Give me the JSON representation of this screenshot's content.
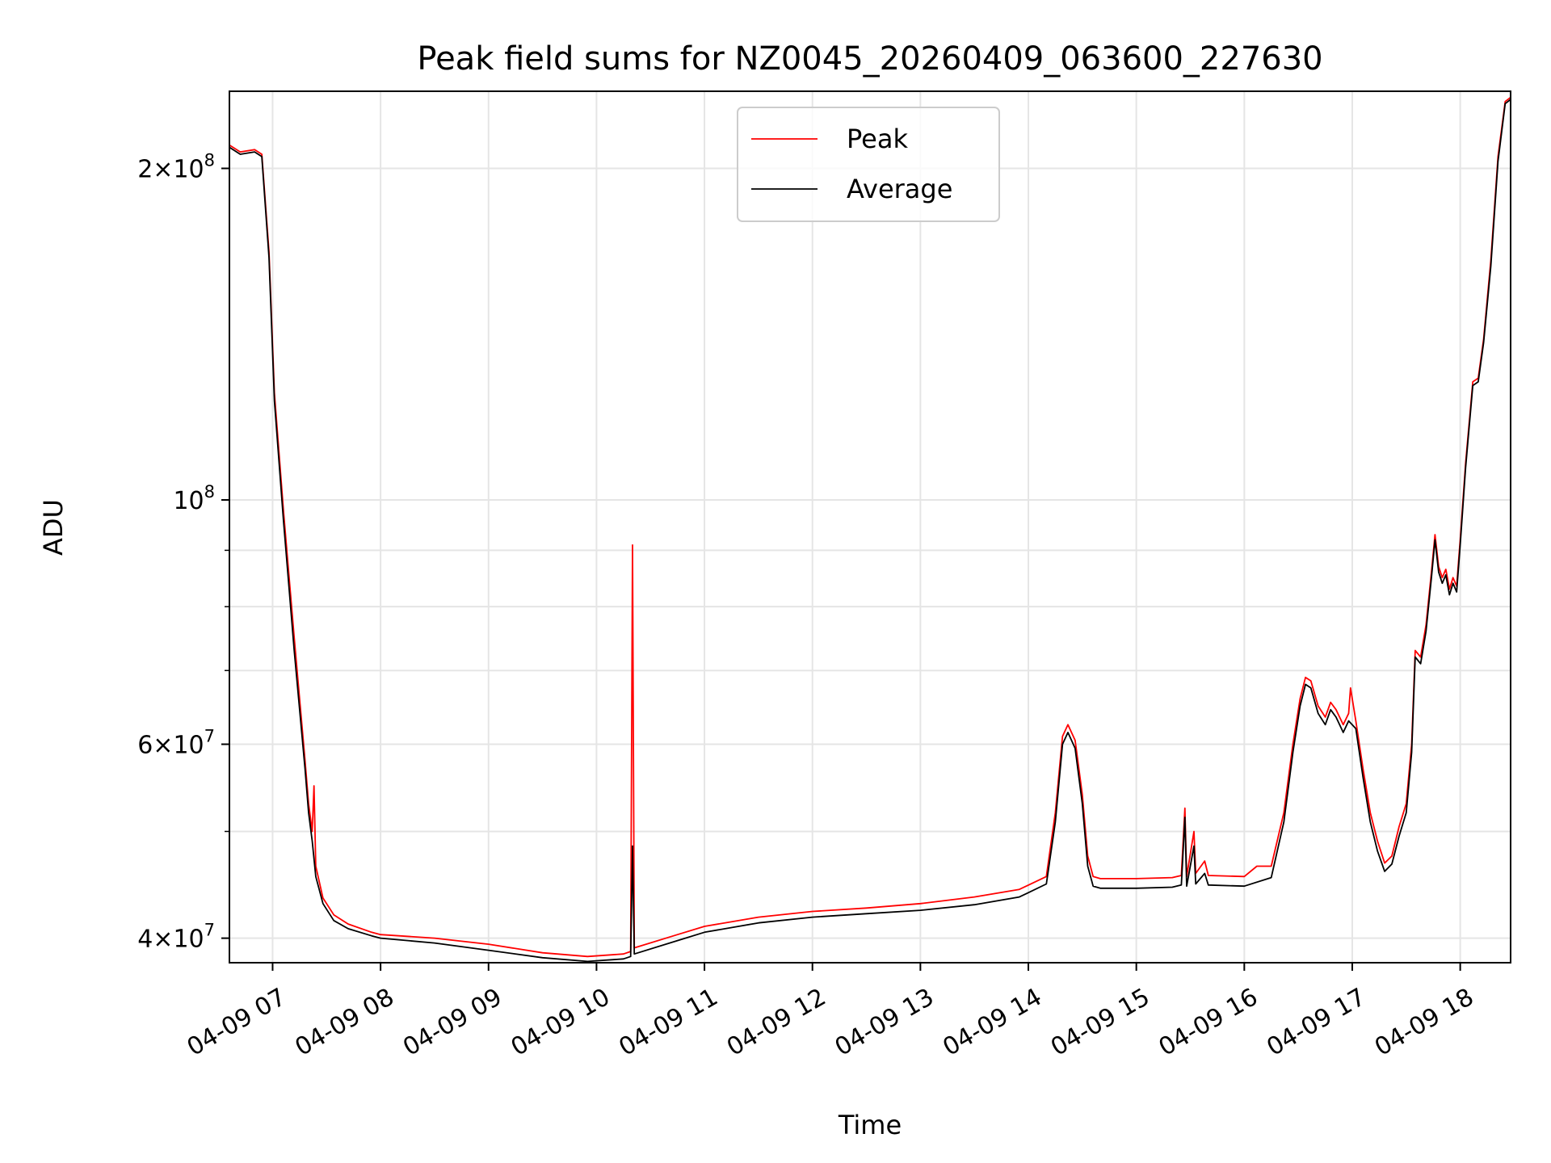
{
  "chart_data": {
    "type": "line",
    "title": "Peak field sums for NZ0045_20260409_063600_227630",
    "xlabel": "Time",
    "ylabel": "ADU",
    "yscale": "log",
    "ylim": [
      38000000,
      235000000
    ],
    "xlim": [
      "2026-04-09 06:36",
      "2026-04-09 18:28"
    ],
    "x_ticks": [
      "04-09 07",
      "04-09 08",
      "04-09 09",
      "04-09 10",
      "04-09 11",
      "04-09 12",
      "04-09 13",
      "04-09 14",
      "04-09 15",
      "04-09 16",
      "04-09 17",
      "04-09 18"
    ],
    "x_tick_rotation": 30,
    "y_major_ticks": [
      {
        "value": 40000000,
        "mantissa": "4",
        "exp": "7"
      },
      {
        "value": 60000000,
        "mantissa": "6",
        "exp": "7"
      },
      {
        "value": 100000000,
        "mantissa": "",
        "exp": "8"
      },
      {
        "value": 200000000,
        "mantissa": "2",
        "exp": "8"
      }
    ],
    "y_minor_ticks": [
      50000000,
      70000000,
      80000000,
      90000000
    ],
    "grid": true,
    "legend": "upper center",
    "series": [
      {
        "name": "Peak",
        "color": "#ff0000",
        "points": [
          [
            "2026-04-09 06:36",
            210000000
          ],
          [
            "2026-04-09 06:42",
            207000000
          ],
          [
            "2026-04-09 06:50",
            208000000
          ],
          [
            "2026-04-09 06:54",
            206000000
          ],
          [
            "2026-04-09 06:58",
            168000000
          ],
          [
            "2026-04-09 07:01",
            125000000
          ],
          [
            "2026-04-09 07:06",
            98000000
          ],
          [
            "2026-04-09 07:12",
            75000000
          ],
          [
            "2026-04-09 07:18",
            58000000
          ],
          [
            "2026-04-09 07:20",
            53000000
          ],
          [
            "2026-04-09 07:22",
            50000000
          ],
          [
            "2026-04-09 07:23",
            55000000
          ],
          [
            "2026-04-09 07:24",
            46500000
          ],
          [
            "2026-04-09 07:28",
            43500000
          ],
          [
            "2026-04-09 07:34",
            42000000
          ],
          [
            "2026-04-09 07:42",
            41200000
          ],
          [
            "2026-04-09 07:55",
            40500000
          ],
          [
            "2026-04-09 08:00",
            40300000
          ],
          [
            "2026-04-09 08:30",
            40000000
          ],
          [
            "2026-04-09 09:00",
            39500000
          ],
          [
            "2026-04-09 09:30",
            38800000
          ],
          [
            "2026-04-09 09:55",
            38500000
          ],
          [
            "2026-04-09 10:15",
            38700000
          ],
          [
            "2026-04-09 10:19",
            38900000
          ],
          [
            "2026-04-09 10:20",
            91000000
          ],
          [
            "2026-04-09 10:21",
            39200000
          ],
          [
            "2026-04-09 10:45",
            40300000
          ],
          [
            "2026-04-09 11:00",
            41000000
          ],
          [
            "2026-04-09 11:30",
            41800000
          ],
          [
            "2026-04-09 12:00",
            42300000
          ],
          [
            "2026-04-09 12:30",
            42600000
          ],
          [
            "2026-04-09 13:00",
            43000000
          ],
          [
            "2026-04-09 13:30",
            43600000
          ],
          [
            "2026-04-09 13:55",
            44300000
          ],
          [
            "2026-04-09 14:10",
            45500000
          ],
          [
            "2026-04-09 14:15",
            52000000
          ],
          [
            "2026-04-09 14:19",
            61000000
          ],
          [
            "2026-04-09 14:22",
            62500000
          ],
          [
            "2026-04-09 14:26",
            60500000
          ],
          [
            "2026-04-09 14:30",
            54000000
          ],
          [
            "2026-04-09 14:33",
            47500000
          ],
          [
            "2026-04-09 14:36",
            45500000
          ],
          [
            "2026-04-09 14:40",
            45300000
          ],
          [
            "2026-04-09 15:00",
            45300000
          ],
          [
            "2026-04-09 15:20",
            45400000
          ],
          [
            "2026-04-09 15:25",
            45600000
          ],
          [
            "2026-04-09 15:27",
            52500000
          ],
          [
            "2026-04-09 15:28",
            45500000
          ],
          [
            "2026-04-09 15:32",
            50000000
          ],
          [
            "2026-04-09 15:33",
            45800000
          ],
          [
            "2026-04-09 15:38",
            47000000
          ],
          [
            "2026-04-09 15:40",
            45600000
          ],
          [
            "2026-04-09 16:00",
            45500000
          ],
          [
            "2026-04-09 16:07",
            46500000
          ],
          [
            "2026-04-09 16:15",
            46500000
          ],
          [
            "2026-04-09 16:22",
            52000000
          ],
          [
            "2026-04-09 16:27",
            60000000
          ],
          [
            "2026-04-09 16:31",
            66000000
          ],
          [
            "2026-04-09 16:34",
            69000000
          ],
          [
            "2026-04-09 16:37",
            68500000
          ],
          [
            "2026-04-09 16:41",
            65000000
          ],
          [
            "2026-04-09 16:45",
            63500000
          ],
          [
            "2026-04-09 16:48",
            65500000
          ],
          [
            "2026-04-09 16:51",
            64500000
          ],
          [
            "2026-04-09 16:55",
            62500000
          ],
          [
            "2026-04-09 16:58",
            64000000
          ],
          [
            "2026-04-09 16:59",
            67500000
          ],
          [
            "2026-04-09 17:02",
            63000000
          ],
          [
            "2026-04-09 17:06",
            57000000
          ],
          [
            "2026-04-09 17:10",
            52000000
          ],
          [
            "2026-04-09 17:14",
            49000000
          ],
          [
            "2026-04-09 17:18",
            46800000
          ],
          [
            "2026-04-09 17:22",
            47500000
          ],
          [
            "2026-04-09 17:26",
            50500000
          ],
          [
            "2026-04-09 17:30",
            53000000
          ],
          [
            "2026-04-09 17:33",
            60000000
          ],
          [
            "2026-04-09 17:35",
            73000000
          ],
          [
            "2026-04-09 17:38",
            72000000
          ],
          [
            "2026-04-09 17:41",
            77000000
          ],
          [
            "2026-04-09 17:44",
            86000000
          ],
          [
            "2026-04-09 17:46",
            93000000
          ],
          [
            "2026-04-09 17:48",
            87000000
          ],
          [
            "2026-04-09 17:50",
            85000000
          ],
          [
            "2026-04-09 17:52",
            86500000
          ],
          [
            "2026-04-09 17:54",
            83000000
          ],
          [
            "2026-04-09 17:56",
            85000000
          ],
          [
            "2026-04-09 17:58",
            83500000
          ],
          [
            "2026-04-09 18:00",
            92000000
          ],
          [
            "2026-04-09 18:03",
            108000000
          ],
          [
            "2026-04-09 18:07",
            128000000
          ],
          [
            "2026-04-09 18:10",
            129000000
          ],
          [
            "2026-04-09 18:13",
            140000000
          ],
          [
            "2026-04-09 18:17",
            165000000
          ],
          [
            "2026-04-09 18:21",
            205000000
          ],
          [
            "2026-04-09 18:25",
            230000000
          ],
          [
            "2026-04-09 18:28",
            232000000
          ]
        ]
      },
      {
        "name": "Average",
        "color": "#000000",
        "points": [
          [
            "2026-04-09 06:36",
            209000000
          ],
          [
            "2026-04-09 06:42",
            206000000
          ],
          [
            "2026-04-09 06:50",
            207000000
          ],
          [
            "2026-04-09 06:54",
            205000000
          ],
          [
            "2026-04-09 06:58",
            166000000
          ],
          [
            "2026-04-09 07:01",
            123000000
          ],
          [
            "2026-04-09 07:06",
            96000000
          ],
          [
            "2026-04-09 07:12",
            73000000
          ],
          [
            "2026-04-09 07:18",
            57000000
          ],
          [
            "2026-04-09 07:20",
            52000000
          ],
          [
            "2026-04-09 07:22",
            49000000
          ],
          [
            "2026-04-09 07:24",
            45500000
          ],
          [
            "2026-04-09 07:28",
            43000000
          ],
          [
            "2026-04-09 07:34",
            41500000
          ],
          [
            "2026-04-09 07:42",
            40800000
          ],
          [
            "2026-04-09 07:55",
            40200000
          ],
          [
            "2026-04-09 08:00",
            40000000
          ],
          [
            "2026-04-09 08:30",
            39600000
          ],
          [
            "2026-04-09 09:00",
            39000000
          ],
          [
            "2026-04-09 09:30",
            38400000
          ],
          [
            "2026-04-09 09:55",
            38100000
          ],
          [
            "2026-04-09 10:15",
            38300000
          ],
          [
            "2026-04-09 10:19",
            38500000
          ],
          [
            "2026-04-09 10:20",
            48500000
          ],
          [
            "2026-04-09 10:21",
            38700000
          ],
          [
            "2026-04-09 10:45",
            39800000
          ],
          [
            "2026-04-09 11:00",
            40500000
          ],
          [
            "2026-04-09 11:30",
            41300000
          ],
          [
            "2026-04-09 12:00",
            41800000
          ],
          [
            "2026-04-09 12:30",
            42100000
          ],
          [
            "2026-04-09 13:00",
            42400000
          ],
          [
            "2026-04-09 13:30",
            42900000
          ],
          [
            "2026-04-09 13:55",
            43600000
          ],
          [
            "2026-04-09 14:10",
            44800000
          ],
          [
            "2026-04-09 14:15",
            51000000
          ],
          [
            "2026-04-09 14:19",
            60000000
          ],
          [
            "2026-04-09 14:22",
            61500000
          ],
          [
            "2026-04-09 14:26",
            59500000
          ],
          [
            "2026-04-09 14:30",
            53000000
          ],
          [
            "2026-04-09 14:33",
            46500000
          ],
          [
            "2026-04-09 14:36",
            44600000
          ],
          [
            "2026-04-09 14:40",
            44400000
          ],
          [
            "2026-04-09 15:00",
            44400000
          ],
          [
            "2026-04-09 15:20",
            44500000
          ],
          [
            "2026-04-09 15:25",
            44700000
          ],
          [
            "2026-04-09 15:27",
            51500000
          ],
          [
            "2026-04-09 15:28",
            44600000
          ],
          [
            "2026-04-09 15:32",
            48500000
          ],
          [
            "2026-04-09 15:33",
            44800000
          ],
          [
            "2026-04-09 15:38",
            45800000
          ],
          [
            "2026-04-09 15:40",
            44700000
          ],
          [
            "2026-04-09 16:00",
            44600000
          ],
          [
            "2026-04-09 16:15",
            45400000
          ],
          [
            "2026-04-09 16:22",
            51000000
          ],
          [
            "2026-04-09 16:27",
            59000000
          ],
          [
            "2026-04-09 16:31",
            65000000
          ],
          [
            "2026-04-09 16:34",
            68000000
          ],
          [
            "2026-04-09 16:37",
            67500000
          ],
          [
            "2026-04-09 16:41",
            64000000
          ],
          [
            "2026-04-09 16:45",
            62500000
          ],
          [
            "2026-04-09 16:48",
            64500000
          ],
          [
            "2026-04-09 16:51",
            63500000
          ],
          [
            "2026-04-09 16:55",
            61500000
          ],
          [
            "2026-04-09 16:58",
            63000000
          ],
          [
            "2026-04-09 17:02",
            62000000
          ],
          [
            "2026-04-09 17:06",
            56000000
          ],
          [
            "2026-04-09 17:10",
            51000000
          ],
          [
            "2026-04-09 17:14",
            48000000
          ],
          [
            "2026-04-09 17:18",
            46000000
          ],
          [
            "2026-04-09 17:22",
            46700000
          ],
          [
            "2026-04-09 17:26",
            49500000
          ],
          [
            "2026-04-09 17:30",
            52000000
          ],
          [
            "2026-04-09 17:33",
            59000000
          ],
          [
            "2026-04-09 17:35",
            72000000
          ],
          [
            "2026-04-09 17:38",
            71000000
          ],
          [
            "2026-04-09 17:41",
            76000000
          ],
          [
            "2026-04-09 17:44",
            85000000
          ],
          [
            "2026-04-09 17:46",
            92000000
          ],
          [
            "2026-04-09 17:48",
            86000000
          ],
          [
            "2026-04-09 17:50",
            84000000
          ],
          [
            "2026-04-09 17:52",
            85500000
          ],
          [
            "2026-04-09 17:54",
            82000000
          ],
          [
            "2026-04-09 17:56",
            84000000
          ],
          [
            "2026-04-09 17:58",
            82500000
          ],
          [
            "2026-04-09 18:00",
            91000000
          ],
          [
            "2026-04-09 18:03",
            107000000
          ],
          [
            "2026-04-09 18:07",
            127000000
          ],
          [
            "2026-04-09 18:10",
            128000000
          ],
          [
            "2026-04-09 18:13",
            139000000
          ],
          [
            "2026-04-09 18:17",
            163000000
          ],
          [
            "2026-04-09 18:21",
            203000000
          ],
          [
            "2026-04-09 18:25",
            229000000
          ],
          [
            "2026-04-09 18:28",
            231000000
          ]
        ]
      }
    ]
  }
}
